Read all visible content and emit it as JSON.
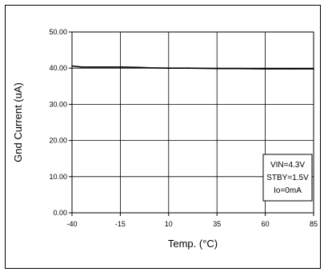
{
  "chart_data": {
    "type": "line",
    "xlabel": "Temp. (°C)",
    "ylabel": "Gnd Current (uA)",
    "x_ticks": [
      "-40",
      "-15",
      "10",
      "35",
      "60",
      "85"
    ],
    "y_ticks": [
      "0.00",
      "10.00",
      "20.00",
      "30.00",
      "40.00",
      "50.00"
    ],
    "xlim": [
      -40,
      85
    ],
    "ylim": [
      0,
      50
    ],
    "grid": true,
    "series": [
      {
        "x": [
          -40,
          -35,
          -25,
          -15,
          -5,
          0,
          10,
          20,
          35,
          45,
          60,
          75,
          85
        ],
        "y": [
          40.6,
          40.3,
          40.3,
          40.3,
          40.2,
          40.1,
          40.0,
          40.0,
          39.9,
          39.9,
          39.8,
          39.8,
          39.8
        ]
      }
    ],
    "annotation_lines": [
      "VIN=4.3V",
      "STBY=1.5V",
      "Io=0mA"
    ],
    "annotation_placement": "bottom-right",
    "colors": {
      "line": "#000000",
      "grid": "#000000",
      "plot_background": "#ffffff"
    }
  }
}
